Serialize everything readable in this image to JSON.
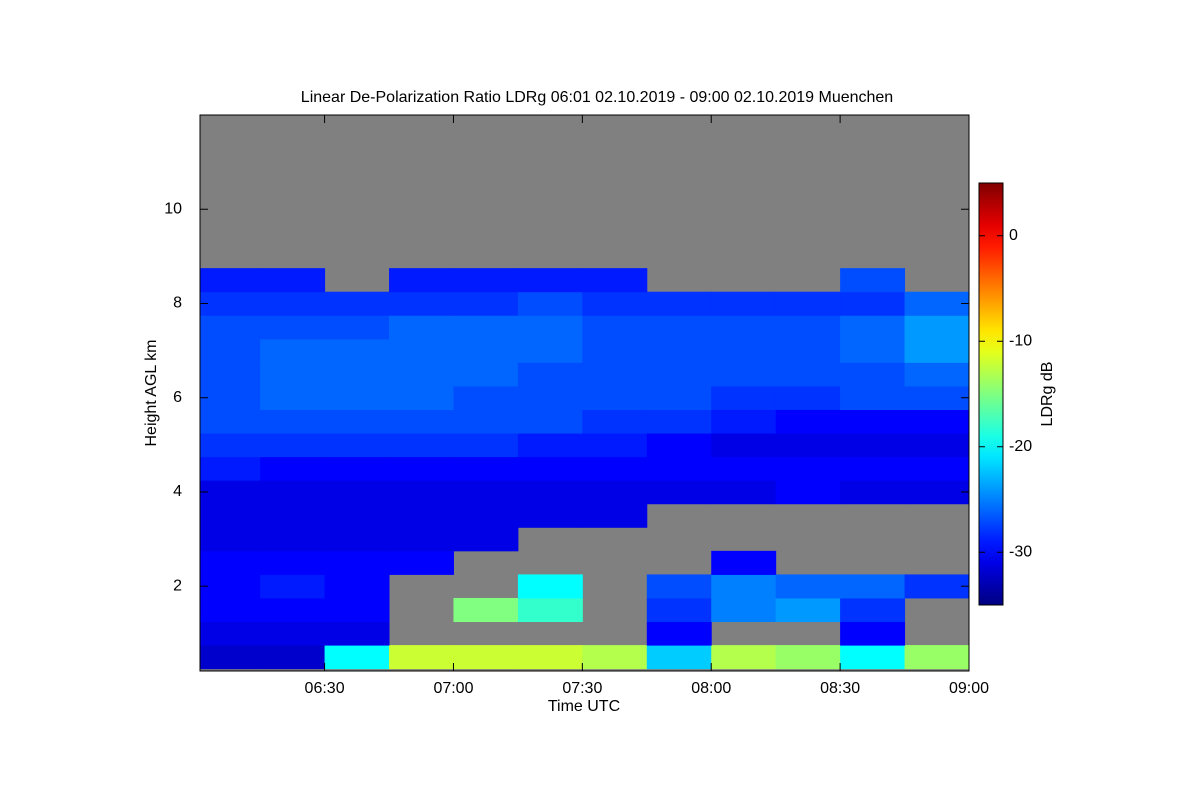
{
  "chart_data": {
    "type": "heatmap",
    "title": "Linear De-Polarization Ratio LDRg   06:01 02.10.2019 - 09:00 02.10.2019 Muenchen",
    "x_label": "Time UTC",
    "y_label": "Height AGL km",
    "colorbar_label": "LDRg dB",
    "x": [
      6.125,
      6.375,
      6.625,
      6.875,
      7.125,
      7.375,
      7.625,
      7.875,
      8.125,
      8.375,
      8.625,
      8.875
    ],
    "y": [
      0.5,
      1,
      1.5,
      2,
      2.5,
      3,
      3.5,
      4,
      4.5,
      5,
      5.5,
      6,
      6.5,
      7,
      7.5,
      8,
      8.5,
      9,
      9.5,
      10,
      10.5,
      11,
      11.5
    ],
    "z": [
      [
        -32,
        -32,
        -20,
        -12,
        -12,
        -12,
        -13,
        -22,
        -13,
        -14,
        -20,
        -14
      ],
      [
        -31,
        -31,
        -31,
        null,
        null,
        null,
        null,
        -30,
        null,
        null,
        -30,
        null
      ],
      [
        -30,
        -30,
        -30,
        null,
        -15,
        -18,
        null,
        -28,
        -25,
        -24,
        -28,
        null
      ],
      [
        -30,
        -29,
        -30,
        null,
        null,
        -20,
        null,
        -27,
        -25,
        -26,
        -26,
        -28
      ],
      [
        -30,
        -30,
        -30,
        -30,
        null,
        null,
        null,
        null,
        -30,
        null,
        null,
        null
      ],
      [
        -31,
        -31,
        -31,
        -31,
        -31,
        null,
        null,
        null,
        null,
        null,
        null,
        null
      ],
      [
        -31,
        -31,
        -31,
        -31,
        -31,
        -31,
        -31,
        null,
        null,
        null,
        null,
        null
      ],
      [
        -31,
        -31,
        -31,
        -31,
        -31,
        -31,
        -31,
        -31,
        -31,
        -30,
        -31,
        -31
      ],
      [
        -29,
        -30,
        -30,
        -30,
        -30,
        -30,
        -30,
        -30,
        -30,
        -30,
        -30,
        -30
      ],
      [
        -28,
        -28,
        -28,
        -28,
        -28,
        -29,
        -29,
        -30,
        -31,
        -31,
        -31,
        -31
      ],
      [
        -27,
        -27,
        -27,
        -27,
        -27,
        -27,
        -28,
        -28,
        -29,
        -30,
        -30,
        -30
      ],
      [
        -27,
        -26,
        -26,
        -26,
        -27,
        -27,
        -27,
        -27,
        -28,
        -28,
        -27,
        -27
      ],
      [
        -27,
        -26,
        -26,
        -26,
        -26,
        -27,
        -27,
        -27,
        -27,
        -27,
        -27,
        -26
      ],
      [
        -27,
        -26,
        -26,
        -26,
        -26,
        -26,
        -27,
        -27,
        -27,
        -27,
        -26,
        -24
      ],
      [
        -27,
        -27,
        -27,
        -26,
        -26,
        -26,
        -27,
        -27,
        -27,
        -27,
        -26,
        -24
      ],
      [
        -28,
        -28,
        -28,
        -28,
        -28,
        -27,
        -28,
        -28,
        -28,
        -28,
        -28,
        -26
      ],
      [
        -29,
        -29,
        null,
        -29,
        -29,
        -29,
        -29,
        null,
        null,
        null,
        -27,
        null
      ],
      [
        null,
        null,
        null,
        null,
        null,
        null,
        null,
        null,
        null,
        null,
        null,
        null
      ],
      [
        null,
        null,
        null,
        null,
        null,
        null,
        null,
        null,
        null,
        null,
        null,
        null
      ],
      [
        null,
        null,
        null,
        null,
        null,
        null,
        null,
        null,
        null,
        null,
        null,
        null
      ],
      [
        null,
        null,
        null,
        null,
        null,
        null,
        null,
        null,
        null,
        null,
        null,
        null
      ],
      [
        null,
        null,
        null,
        null,
        null,
        null,
        null,
        null,
        null,
        null,
        null,
        null
      ],
      [
        null,
        null,
        null,
        null,
        null,
        null,
        null,
        null,
        null,
        null,
        null,
        null
      ]
    ],
    "xlim": [
      6.0167,
      9
    ],
    "xticks": [
      {
        "value": 6.5,
        "label": "06:30"
      },
      {
        "value": 7,
        "label": "07:00"
      },
      {
        "value": 7.5,
        "label": "07:30"
      },
      {
        "value": 8,
        "label": "08:00"
      },
      {
        "value": 8.5,
        "label": "08:30"
      },
      {
        "value": 9,
        "label": "09:00"
      }
    ],
    "ylim": [
      0.2,
      12
    ],
    "yticks": [
      2,
      4,
      6,
      8,
      10
    ],
    "clim": [
      -35,
      5
    ],
    "cticks": [
      0,
      -10,
      -20,
      -30
    ],
    "colormap": "jet",
    "no_data_color": "#808080"
  }
}
